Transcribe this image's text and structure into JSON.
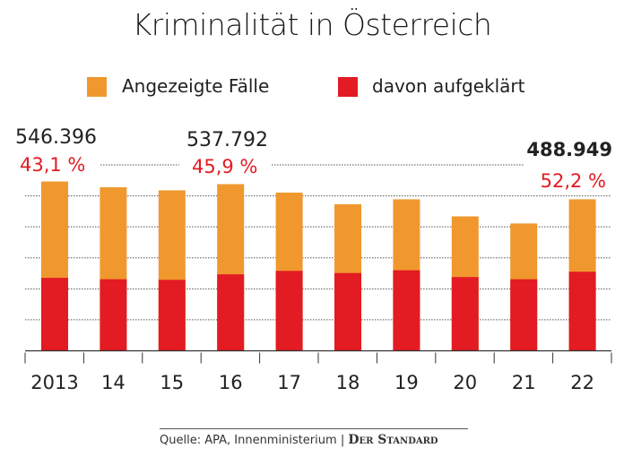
{
  "chart_data": {
    "type": "bar",
    "stacked": false,
    "title": "Kriminalität in Österreich",
    "categories": [
      "2013",
      "14",
      "15",
      "16",
      "17",
      "18",
      "19",
      "20",
      "21",
      "22"
    ],
    "series": [
      {
        "name": "Angezeigte Fälle",
        "color": "#f0982e",
        "values": [
          546396,
          527692,
          517870,
          537792,
          510536,
          472981,
          488912,
          433811,
          410957,
          488949
        ]
      },
      {
        "name": "davon aufgeklärt",
        "color": "#e31b23",
        "values": [
          235500,
          231000,
          229000,
          246800,
          258000,
          251000,
          260000,
          238000,
          231000,
          255200
        ]
      }
    ],
    "annotations": [
      {
        "category": "2013",
        "total_label": "546.396",
        "rate_label": "43,1 %"
      },
      {
        "category": "16",
        "total_label": "537.792",
        "rate_label": "45,9 %"
      },
      {
        "category": "22",
        "total_label": "488.949",
        "rate_label": "52,2 %"
      }
    ],
    "ylim": [
      0,
      600000
    ],
    "grid": true,
    "legend": "top",
    "xlabel": "",
    "ylabel": ""
  },
  "footer": {
    "source": "Quelle: APA, Innenministerium",
    "separator": "|",
    "brand": "Der Standard"
  }
}
